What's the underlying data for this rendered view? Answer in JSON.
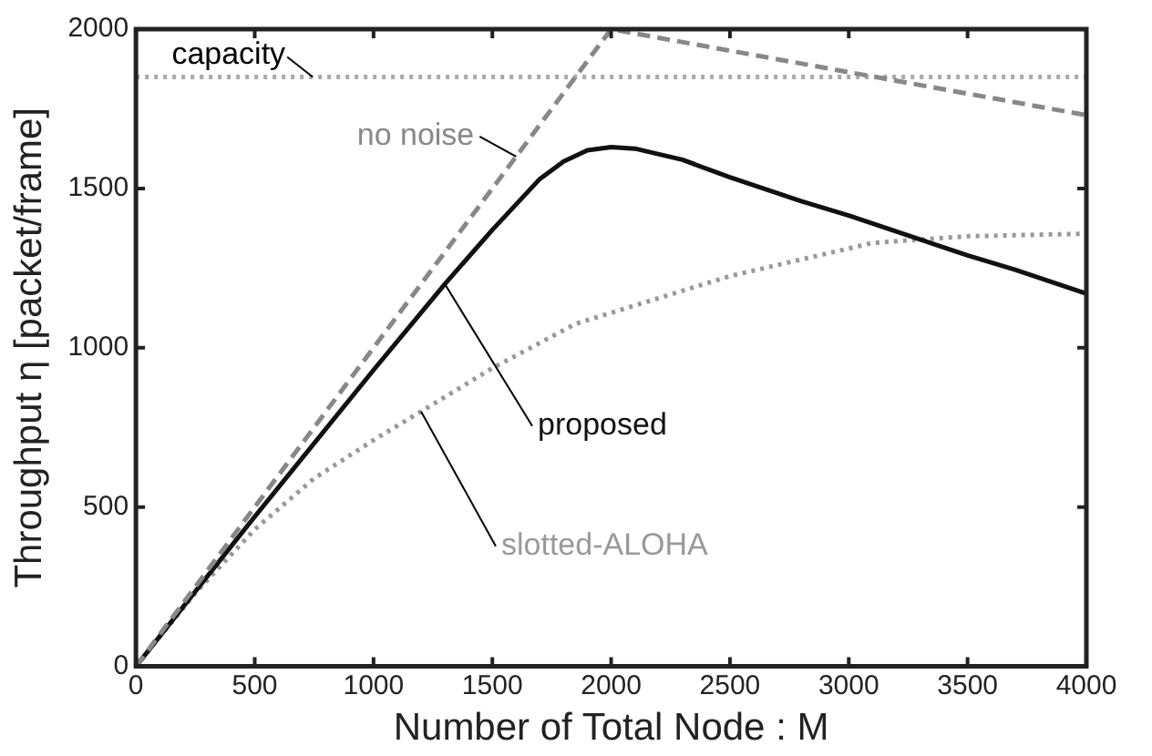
{
  "chart_data": {
    "type": "line",
    "xlabel": "Number of Total Node : M",
    "ylabel": "Throughput η [packet/frame]",
    "xlim": [
      0,
      4000
    ],
    "xticks": [
      0,
      500,
      1000,
      1500,
      2000,
      2500,
      3000,
      3500,
      4000
    ],
    "ylim": [
      0,
      2000
    ],
    "yticks": [
      0,
      500,
      1000,
      1500,
      2000
    ],
    "grid": false,
    "legend": false,
    "marker": "none",
    "ref_lines": [
      {
        "axis": "y",
        "value": 1850,
        "label": "capacity",
        "color": "#aaaaaa",
        "line_style": "dotted"
      }
    ],
    "series": [
      {
        "name": "no noise",
        "color": "#888888",
        "line_style": "dashed",
        "x": [
          0,
          1600,
          2000,
          4000
        ],
        "values": [
          0,
          1600,
          2000,
          1730
        ]
      },
      {
        "name": "proposed",
        "color": "#111111",
        "line_style": "solid",
        "x": [
          0,
          500,
          1000,
          1300,
          1500,
          1700,
          1800,
          1900,
          2000,
          2100,
          2300,
          2500,
          2800,
          3000,
          3300,
          3500,
          3700,
          4000
        ],
        "values": [
          0,
          470,
          930,
          1200,
          1370,
          1530,
          1585,
          1620,
          1630,
          1625,
          1590,
          1535,
          1460,
          1415,
          1340,
          1290,
          1245,
          1170
        ]
      },
      {
        "name": "slotted-ALOHA",
        "color": "#999999",
        "line_style": "dotted",
        "x": [
          0,
          250,
          500,
          750,
          1000,
          1200,
          1500,
          1850,
          2500,
          3100,
          3500,
          4000
        ],
        "values": [
          0,
          230,
          430,
          590,
          710,
          800,
          936,
          1075,
          1225,
          1329,
          1350,
          1358
        ]
      }
    ]
  }
}
